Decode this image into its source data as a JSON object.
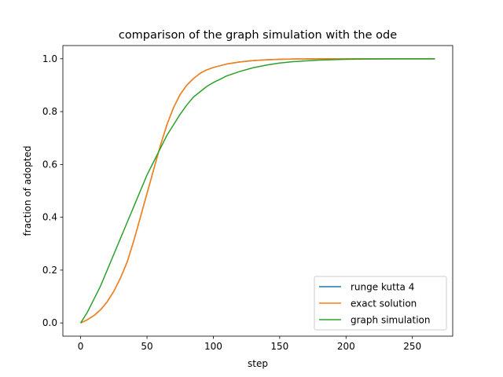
{
  "chart_data": {
    "type": "line",
    "title": "comparison of the graph simulation with the ode",
    "xlabel": "step",
    "ylabel": "fraction of adopted",
    "xlim": [
      -13.4,
      280.4
    ],
    "ylim": [
      -0.05,
      1.05
    ],
    "xticks": [
      0,
      50,
      100,
      150,
      200,
      250
    ],
    "yticks": [
      0.0,
      0.2,
      0.4,
      0.6,
      0.8,
      1.0
    ],
    "xtick_labels": [
      "0",
      "50",
      "100",
      "150",
      "200",
      "250"
    ],
    "ytick_labels": [
      "0.0",
      "0.2",
      "0.4",
      "0.6",
      "0.8",
      "1.0"
    ],
    "grid": false,
    "legend_position": "lower-right",
    "series": [
      {
        "name": "runge kutta 4",
        "color": "#1f77b4",
        "x": [
          0,
          5,
          10,
          15,
          20,
          25,
          30,
          35,
          40,
          45,
          50,
          55,
          60,
          65,
          70,
          75,
          80,
          85,
          90,
          95,
          100,
          110,
          120,
          130,
          140,
          150,
          160,
          180,
          200,
          220,
          240,
          267
        ],
        "y": [
          0.0,
          0.012,
          0.028,
          0.05,
          0.08,
          0.12,
          0.17,
          0.23,
          0.31,
          0.4,
          0.49,
          0.58,
          0.67,
          0.75,
          0.815,
          0.865,
          0.9,
          0.925,
          0.945,
          0.958,
          0.967,
          0.98,
          0.988,
          0.993,
          0.996,
          0.998,
          0.999,
          1.0,
          1.0,
          1.0,
          1.0,
          1.0
        ]
      },
      {
        "name": "exact solution",
        "color": "#ff7f0e",
        "x": [
          0,
          5,
          10,
          15,
          20,
          25,
          30,
          35,
          40,
          45,
          50,
          55,
          60,
          65,
          70,
          75,
          80,
          85,
          90,
          95,
          100,
          110,
          120,
          130,
          140,
          150,
          160,
          180,
          200,
          220,
          240,
          267
        ],
        "y": [
          0.0,
          0.012,
          0.028,
          0.05,
          0.08,
          0.12,
          0.17,
          0.23,
          0.31,
          0.4,
          0.49,
          0.58,
          0.67,
          0.75,
          0.815,
          0.865,
          0.9,
          0.925,
          0.945,
          0.958,
          0.967,
          0.98,
          0.988,
          0.993,
          0.996,
          0.998,
          0.999,
          1.0,
          1.0,
          1.0,
          1.0,
          1.0
        ]
      },
      {
        "name": "graph simulation",
        "color": "#2ca02c",
        "x": [
          0,
          5,
          10,
          15,
          20,
          25,
          30,
          35,
          40,
          45,
          50,
          55,
          60,
          65,
          70,
          75,
          80,
          85,
          90,
          95,
          100,
          105,
          110,
          120,
          130,
          140,
          150,
          160,
          180,
          200,
          220,
          240,
          267
        ],
        "y": [
          0.0,
          0.04,
          0.09,
          0.14,
          0.2,
          0.26,
          0.32,
          0.38,
          0.44,
          0.5,
          0.56,
          0.61,
          0.66,
          0.71,
          0.75,
          0.79,
          0.825,
          0.855,
          0.875,
          0.895,
          0.91,
          0.922,
          0.935,
          0.952,
          0.966,
          0.976,
          0.984,
          0.989,
          0.995,
          0.998,
          0.999,
          1.0,
          1.0
        ]
      }
    ]
  }
}
